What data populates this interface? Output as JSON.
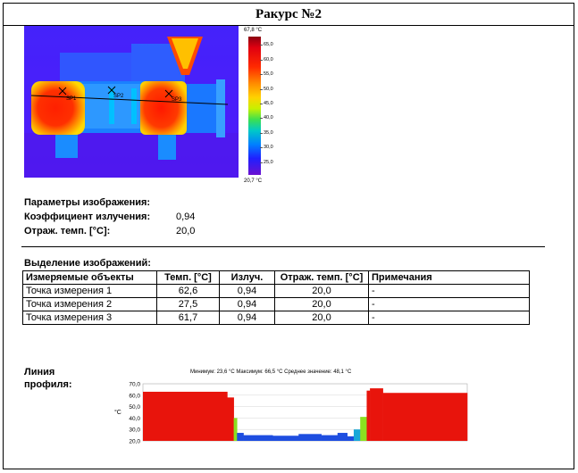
{
  "header": {
    "title": "Ракурс №2"
  },
  "thermogram": {
    "points": [
      {
        "label": "SP1"
      },
      {
        "label": "SP2"
      },
      {
        "label": "SP3"
      }
    ],
    "scale": {
      "max_label": "67,8 °C",
      "min_label": "20,7 °C",
      "ticks": [
        "65,0",
        "60,0",
        "55,0",
        "50,0",
        "45,0",
        "40,0",
        "35,0",
        "30,0",
        "25,0"
      ],
      "tick_values": [
        65,
        60,
        55,
        50,
        45,
        40,
        35,
        30,
        25
      ],
      "min": 20.7,
      "max": 67.8
    }
  },
  "image_params": {
    "heading": "Параметры изображения:",
    "emissivity_label": "Коэффициент излучения:",
    "emissivity_value": "0,94",
    "refl_label": "Отраж. темп. [°C]:",
    "refl_value": "20,0"
  },
  "selection": {
    "heading": "Выделение изображений:",
    "columns": [
      "Измеряемые объекты",
      "Темп. [°C]",
      "Излуч.",
      "Отраж. темп. [°C]",
      "Примечания"
    ],
    "rows": [
      [
        "Точка измерения 1",
        "62,6",
        "0,94",
        "20,0",
        "-"
      ],
      [
        "Точка измерения 2",
        "27,5",
        "0,94",
        "20,0",
        "-"
      ],
      [
        "Точка измерения 3",
        "61,7",
        "0,94",
        "20,0",
        "-"
      ]
    ]
  },
  "profile": {
    "label_line1": "Линия",
    "label_line2": "профиля:",
    "stats": "Минимум: 23,6 °C Максимум: 66,5 °C Среднее значение: 48,1 °C",
    "unit": "°C"
  },
  "chart_data": {
    "type": "bar",
    "ylabel": "°C",
    "ylim": [
      20,
      70
    ],
    "yticks": [
      "70,0",
      "60,0",
      "50,0",
      "40,0",
      "30,0",
      "20,0"
    ],
    "segments": [
      {
        "from": 0.0,
        "to": 0.26,
        "value": 63
      },
      {
        "from": 0.26,
        "to": 0.28,
        "value": 58
      },
      {
        "from": 0.28,
        "to": 0.29,
        "value": 40
      },
      {
        "from": 0.29,
        "to": 0.31,
        "value": 27
      },
      {
        "from": 0.31,
        "to": 0.4,
        "value": 25
      },
      {
        "from": 0.4,
        "to": 0.48,
        "value": 24.5
      },
      {
        "from": 0.48,
        "to": 0.55,
        "value": 26
      },
      {
        "from": 0.55,
        "to": 0.6,
        "value": 25
      },
      {
        "from": 0.6,
        "to": 0.63,
        "value": 27
      },
      {
        "from": 0.63,
        "to": 0.65,
        "value": 24
      },
      {
        "from": 0.65,
        "to": 0.67,
        "value": 30
      },
      {
        "from": 0.67,
        "to": 0.69,
        "value": 41
      },
      {
        "from": 0.69,
        "to": 0.7,
        "value": 64
      },
      {
        "from": 0.7,
        "to": 0.74,
        "value": 66
      },
      {
        "from": 0.74,
        "to": 1.0,
        "value": 62
      }
    ]
  }
}
